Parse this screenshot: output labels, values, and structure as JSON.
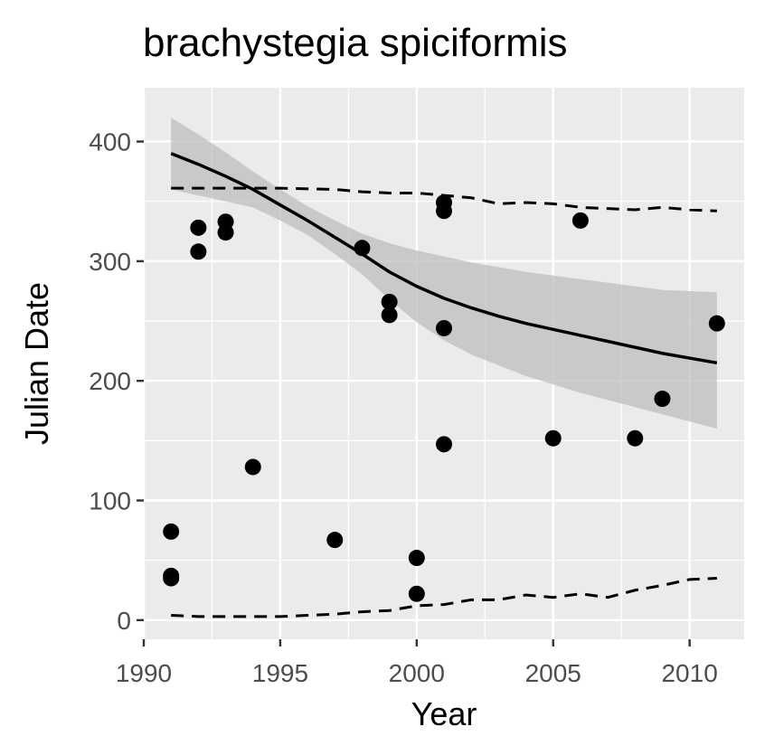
{
  "chart_data": {
    "type": "scatter",
    "title": "brachystegia spiciformis",
    "xlabel": "Year",
    "ylabel": "Julian Date",
    "xlim": [
      1990,
      2012
    ],
    "ylim": [
      -16,
      445
    ],
    "xticks": [
      1990,
      1995,
      2000,
      2005,
      2010
    ],
    "yticks": [
      0,
      100,
      200,
      300,
      400
    ],
    "grid": true,
    "legend": "none",
    "colors": {
      "panel": "#ebebeb",
      "grid": "#ffffff",
      "points": "#000000",
      "band": "#bdbdbd",
      "tick_label": "#4d4d4d"
    },
    "points": [
      [
        1991,
        74
      ],
      [
        1991,
        37
      ],
      [
        1991,
        35
      ],
      [
        1992,
        328
      ],
      [
        1992,
        308
      ],
      [
        1993,
        333
      ],
      [
        1993,
        324
      ],
      [
        1994,
        128
      ],
      [
        1997,
        67
      ],
      [
        1998,
        311
      ],
      [
        1999,
        266
      ],
      [
        1999,
        255
      ],
      [
        2000,
        52
      ],
      [
        2000,
        22
      ],
      [
        2001,
        349
      ],
      [
        2001,
        342
      ],
      [
        2001,
        244
      ],
      [
        2001,
        147
      ],
      [
        2005,
        152
      ],
      [
        2006,
        334
      ],
      [
        2008,
        152
      ],
      [
        2009,
        185
      ],
      [
        2011,
        248
      ]
    ],
    "smooth_line": [
      [
        1991,
        390
      ],
      [
        1992,
        381
      ],
      [
        1993,
        371
      ],
      [
        1994,
        360
      ],
      [
        1995,
        347
      ],
      [
        1996,
        334
      ],
      [
        1997,
        320
      ],
      [
        1998,
        306
      ],
      [
        1999,
        291
      ],
      [
        2000,
        279
      ],
      [
        2001,
        269
      ],
      [
        2002,
        261
      ],
      [
        2003,
        254
      ],
      [
        2004,
        248
      ],
      [
        2005,
        243
      ],
      [
        2006,
        238
      ],
      [
        2007,
        233
      ],
      [
        2008,
        228
      ],
      [
        2009,
        223
      ],
      [
        2010,
        219
      ],
      [
        2011,
        215
      ]
    ],
    "confidence_band": {
      "x": [
        1991,
        1992,
        1993,
        1994,
        1995,
        1996,
        1997,
        1998,
        1999,
        2000,
        2001,
        2002,
        2003,
        2004,
        2005,
        2006,
        2007,
        2008,
        2009,
        2010,
        2011
      ],
      "upper": [
        420,
        406,
        391,
        375,
        360,
        346,
        334,
        323,
        315,
        309,
        304,
        299,
        295,
        291,
        288,
        285,
        282,
        279,
        276,
        275,
        274
      ],
      "lower": [
        360,
        355,
        350,
        345,
        334,
        322,
        306,
        289,
        268,
        249,
        234,
        222,
        213,
        204,
        197,
        190,
        184,
        178,
        172,
        166,
        160
      ]
    },
    "upper_dashed": [
      [
        1991,
        361
      ],
      [
        1993,
        361
      ],
      [
        1995,
        361
      ],
      [
        1997,
        360
      ],
      [
        1998,
        358
      ],
      [
        1999,
        357
      ],
      [
        2000,
        357
      ],
      [
        2001,
        355
      ],
      [
        2002,
        353
      ],
      [
        2003,
        348
      ],
      [
        2004,
        349
      ],
      [
        2005,
        348
      ],
      [
        2006,
        345
      ],
      [
        2007,
        344
      ],
      [
        2008,
        343
      ],
      [
        2009,
        345
      ],
      [
        2010,
        343
      ],
      [
        2011,
        342
      ]
    ],
    "lower_dashed": [
      [
        1991,
        4
      ],
      [
        1992,
        3
      ],
      [
        1993,
        3
      ],
      [
        1994,
        3
      ],
      [
        1995,
        3
      ],
      [
        1996,
        4
      ],
      [
        1997,
        5
      ],
      [
        1998,
        7
      ],
      [
        1999,
        8
      ],
      [
        2000,
        12
      ],
      [
        2001,
        13
      ],
      [
        2002,
        17
      ],
      [
        2003,
        17
      ],
      [
        2004,
        21
      ],
      [
        2005,
        19
      ],
      [
        2006,
        22
      ],
      [
        2007,
        19
      ],
      [
        2008,
        25
      ],
      [
        2009,
        29
      ],
      [
        2010,
        34
      ],
      [
        2011,
        35
      ]
    ]
  }
}
